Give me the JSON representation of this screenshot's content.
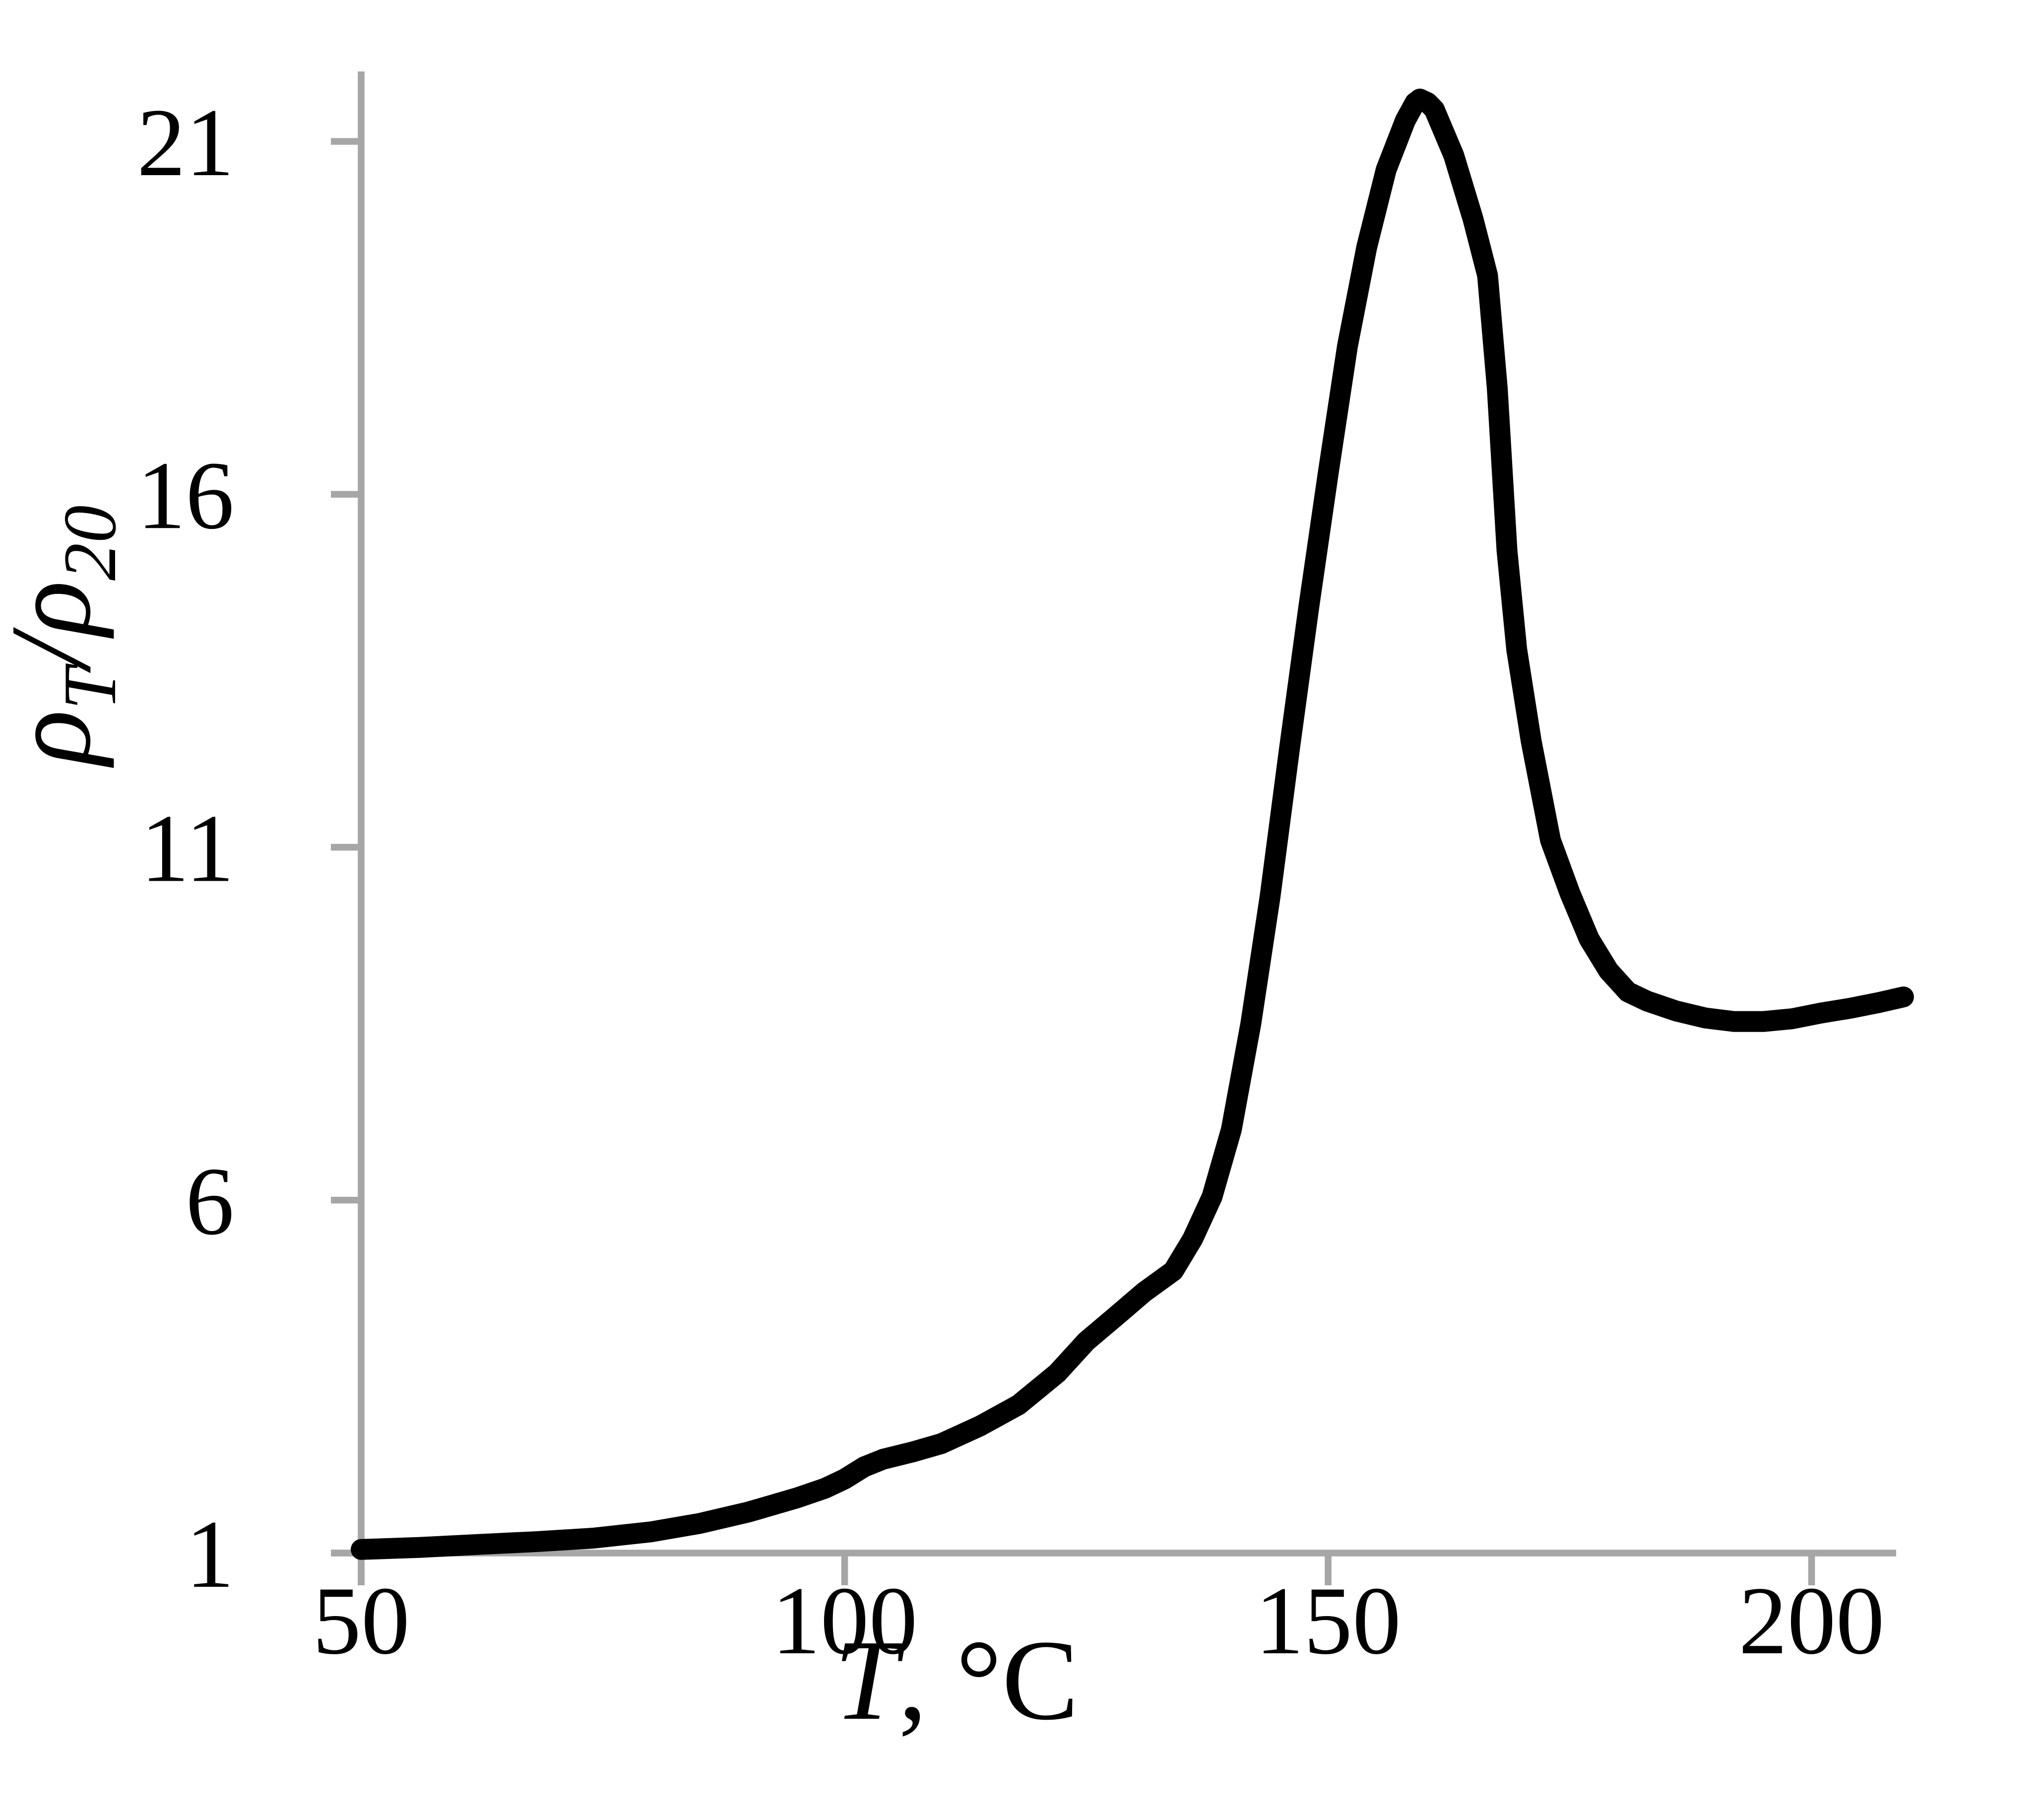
{
  "figure": {
    "background_color": "#ffffff",
    "axis_color": "#a6a6a6",
    "line_color": "#000000"
  },
  "chart_data": {
    "type": "line",
    "title": "",
    "xlabel": {
      "variable": "T",
      "suffix": ", °C",
      "plain": "T, °C"
    },
    "ylabel": {
      "plain": "ρT/ρ20",
      "parts": [
        {
          "text": "ρ",
          "sub": "T"
        },
        {
          "text": "/",
          "sub": ""
        },
        {
          "text": "ρ",
          "sub": "20"
        }
      ]
    },
    "x_ticks": {
      "values": [
        50,
        100,
        150,
        200
      ],
      "labels": [
        "50",
        "100",
        "150",
        "200"
      ]
    },
    "y_ticks": {
      "values": [
        1,
        6,
        11,
        16,
        21
      ],
      "labels": [
        "1",
        "6",
        "11",
        "16",
        "21"
      ]
    },
    "xlim": [
      50,
      210
    ],
    "ylim": [
      1,
      21.6
    ],
    "axes_cross_at": [
      50,
      1
    ],
    "grid": false,
    "legend_position": "none",
    "series": [
      {
        "name": "resistivity-ratio-vs-temperature",
        "color": "#000000",
        "points": [
          [
            50,
            1.05
          ],
          [
            56,
            1.08
          ],
          [
            62,
            1.12
          ],
          [
            68,
            1.16
          ],
          [
            74,
            1.21
          ],
          [
            80,
            1.3
          ],
          [
            85,
            1.42
          ],
          [
            90,
            1.58
          ],
          [
            95,
            1.78
          ],
          [
            98,
            1.92
          ],
          [
            100,
            2.05
          ],
          [
            102,
            2.22
          ],
          [
            104,
            2.33
          ],
          [
            107,
            2.43
          ],
          [
            110,
            2.55
          ],
          [
            114,
            2.8
          ],
          [
            118,
            3.1
          ],
          [
            122,
            3.55
          ],
          [
            125,
            4.0
          ],
          [
            128,
            4.35
          ],
          [
            131,
            4.7
          ],
          [
            134,
            5.0
          ],
          [
            136,
            5.45
          ],
          [
            138,
            6.05
          ],
          [
            140,
            7.0
          ],
          [
            142,
            8.5
          ],
          [
            144,
            10.3
          ],
          [
            146,
            12.4
          ],
          [
            148,
            14.4
          ],
          [
            150,
            16.3
          ],
          [
            152,
            18.1
          ],
          [
            154,
            19.5
          ],
          [
            156,
            20.6
          ],
          [
            158,
            21.3
          ],
          [
            159,
            21.55
          ],
          [
            159.5,
            21.6
          ],
          [
            160.3,
            21.55
          ],
          [
            161,
            21.45
          ],
          [
            163,
            20.8
          ],
          [
            165,
            19.9
          ],
          [
            166.5,
            19.1
          ],
          [
            167.5,
            17.5
          ],
          [
            168.5,
            15.2
          ],
          [
            169.5,
            13.8
          ],
          [
            171,
            12.5
          ],
          [
            173,
            11.1
          ],
          [
            175,
            10.35
          ],
          [
            177,
            9.7
          ],
          [
            179,
            9.25
          ],
          [
            181,
            8.95
          ],
          [
            183,
            8.82
          ],
          [
            186,
            8.68
          ],
          [
            189,
            8.58
          ],
          [
            192,
            8.53
          ],
          [
            195,
            8.53
          ],
          [
            198,
            8.57
          ],
          [
            201,
            8.65
          ],
          [
            204,
            8.72
          ],
          [
            207,
            8.8
          ],
          [
            209.5,
            8.88
          ]
        ]
      }
    ]
  }
}
